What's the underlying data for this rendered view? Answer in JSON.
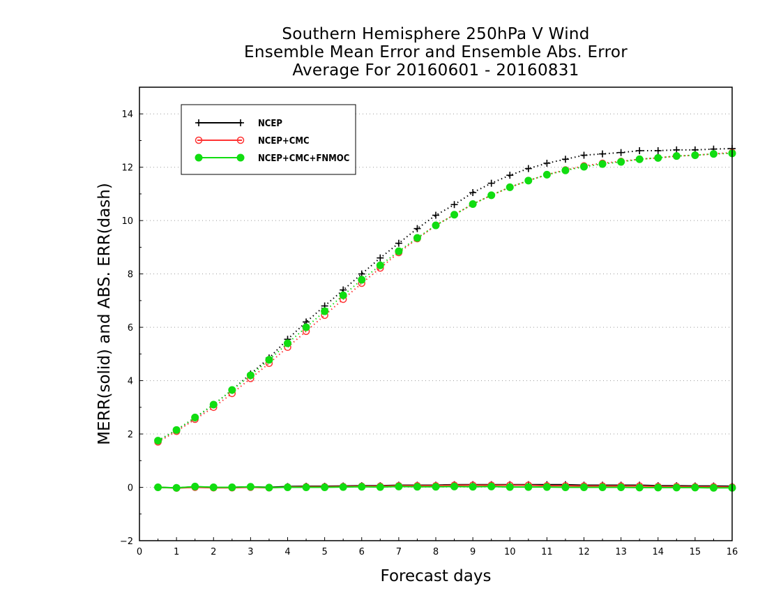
{
  "chart_data": {
    "type": "line",
    "title_lines": [
      "Southern Hemisphere 250hPa V Wind",
      "Ensemble Mean Error and Ensemble Abs. Error",
      "Average For 20160601 - 20160831"
    ],
    "xlabel": "Forecast days",
    "ylabel": "MERR(solid) and ABS. ERR(dash)",
    "xlim": [
      0,
      16
    ],
    "ylim": [
      -2,
      15
    ],
    "xticks": [
      "0",
      "1",
      "2",
      "3",
      "4",
      "5",
      "6",
      "7",
      "8",
      "9",
      "10",
      "11",
      "12",
      "13",
      "14",
      "15",
      "16"
    ],
    "yticks": [
      "−2",
      "0",
      "2",
      "4",
      "6",
      "8",
      "10",
      "12",
      "14"
    ],
    "grid": "horizontal-dotted",
    "legend_position": "top-left",
    "x": [
      0.5,
      1,
      1.5,
      2,
      2.5,
      3,
      3.5,
      4,
      4.5,
      5,
      5.5,
      6,
      6.5,
      7,
      7.5,
      8,
      8.5,
      9,
      9.5,
      10,
      10.5,
      11,
      11.5,
      12,
      12.5,
      13,
      13.5,
      14,
      14.5,
      15,
      15.5,
      16
    ],
    "series": [
      {
        "name": "NCEP",
        "color": "#000000",
        "marker": "plus",
        "abs_err": [
          1.75,
          2.15,
          2.6,
          3.1,
          3.65,
          4.25,
          4.85,
          5.55,
          6.2,
          6.8,
          7.4,
          8.0,
          8.6,
          9.15,
          9.7,
          10.2,
          10.6,
          11.05,
          11.4,
          11.7,
          11.95,
          12.15,
          12.3,
          12.45,
          12.5,
          12.55,
          12.62,
          12.62,
          12.65,
          12.65,
          12.68,
          12.7
        ],
        "mean_err": [
          0.0,
          -0.02,
          0.02,
          0.0,
          0.0,
          0.02,
          0.0,
          0.03,
          0.04,
          0.04,
          0.05,
          0.06,
          0.06,
          0.08,
          0.08,
          0.08,
          0.1,
          0.1,
          0.1,
          0.1,
          0.1,
          0.1,
          0.1,
          0.08,
          0.08,
          0.08,
          0.08,
          0.06,
          0.06,
          0.05,
          0.05,
          0.04
        ]
      },
      {
        "name": "NCEP+CMC",
        "color": "#ff3333",
        "marker": "open-circle",
        "abs_err": [
          1.7,
          2.1,
          2.55,
          3.0,
          3.52,
          4.08,
          4.65,
          5.25,
          5.85,
          6.45,
          7.05,
          7.65,
          8.22,
          8.8,
          9.32,
          9.82,
          10.22,
          10.62,
          10.95,
          11.25,
          11.5,
          11.72,
          11.9,
          12.05,
          12.15,
          12.22,
          12.3,
          12.35,
          12.42,
          12.45,
          12.5,
          12.55
        ],
        "mean_err": [
          0.0,
          -0.03,
          0.0,
          -0.02,
          -0.02,
          0.0,
          -0.02,
          0.01,
          0.02,
          0.02,
          0.03,
          0.04,
          0.04,
          0.06,
          0.06,
          0.06,
          0.08,
          0.08,
          0.08,
          0.08,
          0.08,
          0.06,
          0.06,
          0.05,
          0.05,
          0.05,
          0.05,
          0.03,
          0.03,
          0.02,
          0.02,
          0.01
        ]
      },
      {
        "name": "NCEP+CMC+FNMOC",
        "color": "#11dd11",
        "marker": "filled-circle",
        "abs_err": [
          1.75,
          2.15,
          2.62,
          3.1,
          3.65,
          4.2,
          4.78,
          5.4,
          6.0,
          6.6,
          7.2,
          7.78,
          8.32,
          8.85,
          9.35,
          9.82,
          10.22,
          10.62,
          10.95,
          11.25,
          11.5,
          11.72,
          11.88,
          12.02,
          12.12,
          12.2,
          12.3,
          12.35,
          12.42,
          12.45,
          12.5,
          12.52
        ],
        "mean_err": [
          0.0,
          -0.02,
          0.03,
          0.0,
          0.0,
          0.02,
          -0.01,
          0.0,
          0.0,
          0.0,
          0.01,
          0.02,
          0.01,
          0.03,
          0.02,
          0.02,
          0.03,
          0.02,
          0.03,
          0.01,
          0.01,
          0.01,
          0.0,
          0.0,
          0.0,
          0.0,
          -0.01,
          -0.01,
          -0.01,
          -0.01,
          -0.02,
          -0.02
        ]
      }
    ]
  }
}
